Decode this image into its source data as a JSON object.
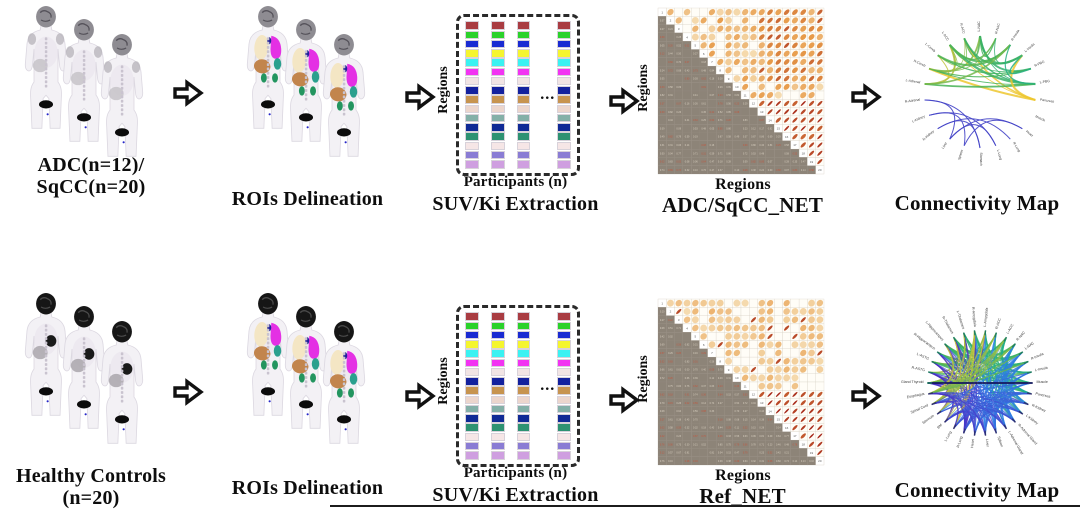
{
  "figure": {
    "rows": [
      {
        "cohort_lines": [
          "ADC(n=12)/",
          "SqCC(n=20)"
        ],
        "rois_label": "ROIs Delineation",
        "extraction_side_label": "Regions",
        "extraction_ellipsis": "...",
        "extraction_bottom_label": "Participants (n)",
        "extraction_title": "SUV/Ki Extraction",
        "matrix_side_label": "Regions",
        "matrix_bottom_label": "Regions",
        "matrix_title": "ADC/SqCC_NET",
        "map_title": "Connectivity Map"
      },
      {
        "cohort_lines": [
          "Healthy Controls",
          "(n=20)"
        ],
        "rois_label": "ROIs Delineation",
        "extraction_side_label": "Regions",
        "extraction_ellipsis": "...",
        "extraction_bottom_label": "Participants (n)",
        "extraction_title": "SUV/Ki Extraction",
        "matrix_side_label": "Regions",
        "matrix_bottom_label": "Regions",
        "matrix_title": "Ref_NET",
        "map_title": "Connectivity Map"
      }
    ],
    "region_colors": [
      "#a93c42",
      "#2bd22b",
      "#1a2bd2",
      "#f5f52e",
      "#3af2f2",
      "#f233f2",
      "#f1e4e4",
      "#13219e",
      "#c7944f",
      "#ecd6cd",
      "#84b0a8",
      "#102a96",
      "#2e9272",
      "#f6e6e6",
      "#8a7cd4",
      "#cf9fe0"
    ],
    "matrix": {
      "n": 20
    },
    "connectivity_top": {
      "labels": [
        "L-NAC",
        "R-ACC",
        "L-ACC",
        "L-Cereb",
        "R-Cereb",
        "L-Adrenal",
        "R-Adrenal",
        "L-Kidney",
        "R-Kidney",
        "Liver",
        "Spleen",
        "Stomach",
        "L-Lung",
        "R-Lung",
        "Heart",
        "Muscle",
        "Pancreas",
        "L-PBG",
        "R-PBG",
        "L-Insula",
        "R-Insula",
        "R-NAC"
      ]
    },
    "connectivity_bottom": {
      "labels": [
        "Gland Thyroid",
        "R-ASTG",
        "L-ASTG",
        "R-Hippocampus",
        "L-Hippocampus",
        "R-Thalamus",
        "L-Thalamus",
        "R-Amygdala",
        "L-Amygdala",
        "R-ACC",
        "L-ACC",
        "R-NAC",
        "L-NAC",
        "R-Insula",
        "L-Insula",
        "Muscle",
        "Pancreas",
        "R-Kidney",
        "L-Kidney",
        "R-Adrenal Gland",
        "L-Adrenal Gland",
        "Spleen",
        "Liver",
        "Heart",
        "R-Lung",
        "L-Lung",
        "BM",
        "Sternum",
        "Spinal Cord",
        "Esophagus"
      ]
    },
    "palette": {
      "warm_yellow": "#edc72f",
      "warm_green": "#46b355",
      "warm_teal": "#16ae9c",
      "cool_a": "#4b2ec4",
      "cool_b": "#2e82e6",
      "sparse_blue": "#4343c6",
      "matrix_low": "#f8ecca",
      "matrix_mid": "#e6953f",
      "matrix_high": "#a01b0e",
      "matrix_gray": "#8d8478",
      "organ_lung_cream": "#f4e6c4",
      "organ_lung_magenta": "#e430e4",
      "organ_liver": "#c2854d",
      "organ_spleen": "#2ba08e",
      "organ_kidney": "#23955f",
      "organ_mediastinum": "#20209a",
      "head_gray": "#8e8c92",
      "head_black": "#161616",
      "body_fill": "#f3f1f5",
      "body_outline": "#dcd8e1",
      "arrow_outline": "#111111"
    }
  }
}
